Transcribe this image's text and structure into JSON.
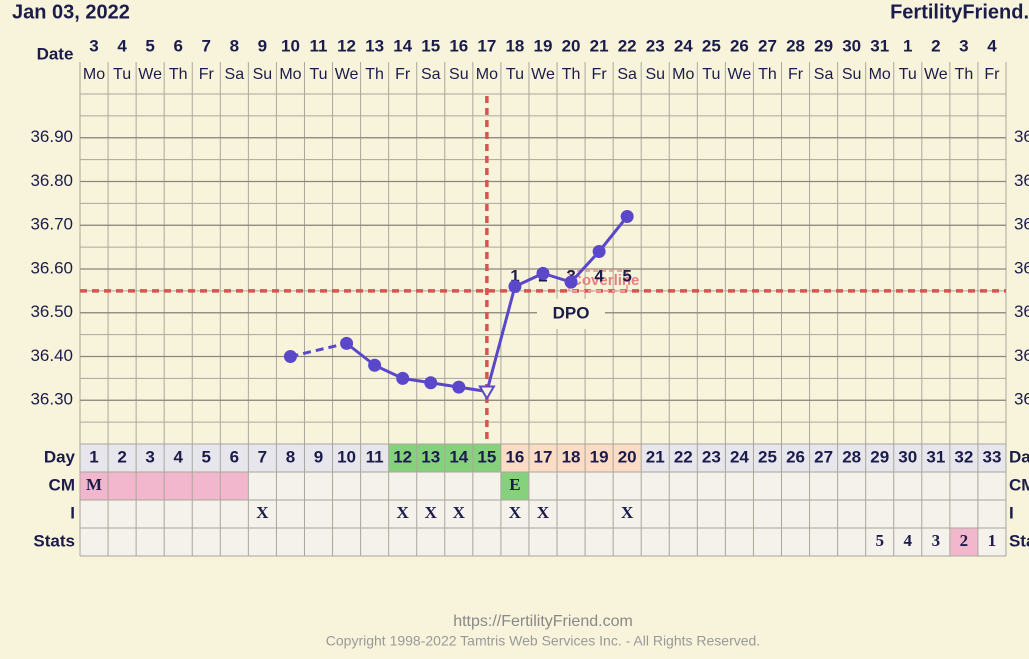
{
  "chart_data": {
    "type": "line",
    "title": "Jan 03, 2022",
    "brand": "FertilityFriend.",
    "date_label": "Date",
    "dates": [
      "3",
      "4",
      "5",
      "6",
      "7",
      "8",
      "9",
      "10",
      "11",
      "12",
      "13",
      "14",
      "15",
      "16",
      "17",
      "18",
      "19",
      "20",
      "21",
      "22",
      "23",
      "24",
      "25",
      "26",
      "27",
      "28",
      "29",
      "30",
      "31",
      "1",
      "2",
      "3",
      "4"
    ],
    "weekdays": [
      "Mo",
      "Tu",
      "We",
      "Th",
      "Fr",
      "Sa",
      "Su",
      "Mo",
      "Tu",
      "We",
      "Th",
      "Fr",
      "Sa",
      "Su",
      "Mo",
      "Tu",
      "We",
      "Th",
      "Fr",
      "Sa",
      "Su",
      "Mo",
      "Tu",
      "We",
      "Th",
      "Fr",
      "Sa",
      "Su",
      "Mo",
      "Tu",
      "We",
      "Th",
      "Fr"
    ],
    "category_label": "Day",
    "categories": [
      1,
      2,
      3,
      4,
      5,
      6,
      7,
      8,
      9,
      10,
      11,
      12,
      13,
      14,
      15,
      16,
      17,
      18,
      19,
      20,
      21,
      22,
      23,
      24,
      25,
      26,
      27,
      28,
      29,
      30,
      31,
      32,
      33
    ],
    "category_colors": [
      null,
      null,
      null,
      null,
      null,
      null,
      null,
      null,
      null,
      null,
      null,
      "#86d17c",
      "#86d17c",
      "#86d17c",
      "#86d17c",
      "#fcdcc4",
      "#fcdcc4",
      "#fcdcc4",
      "#fcdcc4",
      "#fcdcc4",
      null,
      null,
      null,
      null,
      null,
      null,
      null,
      null,
      null,
      null,
      null,
      null,
      null
    ],
    "color": "#5a47c9",
    "values": [
      null,
      null,
      null,
      null,
      null,
      null,
      null,
      36.4,
      null,
      36.43,
      36.38,
      36.35,
      36.34,
      36.33,
      36.32,
      36.56,
      36.59,
      36.57,
      36.64,
      36.72,
      null,
      null,
      null,
      null,
      null,
      null,
      null,
      null,
      null,
      null,
      null,
      null,
      null
    ],
    "ylim": [
      36.2,
      37.0
    ],
    "yticks": [
      {
        "value": 36.3,
        "label": "36.30"
      },
      {
        "value": 36.4,
        "label": "36.40"
      },
      {
        "value": 36.5,
        "label": "36.50"
      },
      {
        "value": 36.6,
        "label": "36.60"
      },
      {
        "value": 36.7,
        "label": "36.70"
      },
      {
        "value": 36.8,
        "label": "36.80"
      },
      {
        "value": 36.9,
        "label": "36.90"
      }
    ],
    "grid": true,
    "coverline": 36.55,
    "coverline_label": "Coverline",
    "ovulation_day": 15,
    "dpo": [
      null,
      null,
      null,
      null,
      null,
      null,
      null,
      null,
      null,
      null,
      null,
      null,
      null,
      null,
      null,
      1,
      2,
      3,
      4,
      5,
      null,
      null,
      null,
      null,
      null,
      null,
      null,
      null,
      null,
      null,
      null,
      null,
      null
    ],
    "dpo_label": "DPO",
    "rows": [
      {
        "label": "CM",
        "values": [
          "M",
          null,
          null,
          null,
          null,
          null,
          null,
          null,
          null,
          null,
          null,
          null,
          null,
          null,
          null,
          "E",
          null,
          null,
          null,
          null,
          null,
          null,
          null,
          null,
          null,
          null,
          null,
          null,
          null,
          null,
          null,
          null,
          null
        ],
        "colors": [
          "#f2b7cd",
          "#f2b7cd",
          "#f2b7cd",
          "#f2b7cd",
          "#f2b7cd",
          "#f2b7cd",
          null,
          null,
          null,
          null,
          null,
          null,
          null,
          null,
          null,
          "#86d17c",
          null,
          null,
          null,
          null,
          null,
          null,
          null,
          null,
          null,
          null,
          null,
          null,
          null,
          null,
          null,
          null,
          null
        ]
      },
      {
        "label": "I",
        "values": [
          null,
          null,
          null,
          null,
          null,
          null,
          "X",
          null,
          null,
          null,
          null,
          "X",
          "X",
          "X",
          null,
          "X",
          "X",
          null,
          null,
          "X",
          null,
          null,
          null,
          null,
          null,
          null,
          null,
          null,
          null,
          null,
          null,
          null,
          null
        ],
        "colors": [
          null,
          null,
          null,
          null,
          null,
          null,
          null,
          null,
          null,
          null,
          null,
          null,
          null,
          null,
          null,
          null,
          null,
          null,
          null,
          null,
          null,
          null,
          null,
          null,
          null,
          null,
          null,
          null,
          null,
          null,
          null,
          null,
          null
        ]
      },
      {
        "label": "Stats",
        "values": [
          null,
          null,
          null,
          null,
          null,
          null,
          null,
          null,
          null,
          null,
          null,
          null,
          null,
          null,
          null,
          null,
          null,
          null,
          null,
          null,
          null,
          null,
          null,
          null,
          null,
          null,
          null,
          null,
          5,
          4,
          3,
          2,
          1
        ],
        "colors": [
          null,
          null,
          null,
          null,
          null,
          null,
          null,
          null,
          null,
          null,
          null,
          null,
          null,
          null,
          null,
          null,
          null,
          null,
          null,
          null,
          null,
          null,
          null,
          null,
          null,
          null,
          null,
          null,
          null,
          null,
          null,
          "#f2b7cd",
          null
        ]
      }
    ],
    "url": "https://FertilityFriend.com",
    "copyright": "Copyright 1998-2022 Tamtris Web Services Inc. - All Rights Reserved."
  }
}
